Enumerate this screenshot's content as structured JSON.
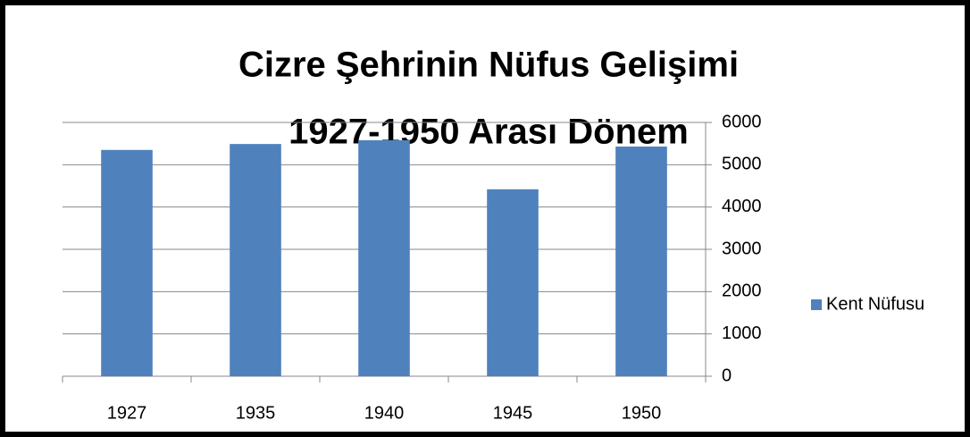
{
  "chart_data": {
    "type": "bar",
    "title": "Cizre Şehrinin Nüfus Gelişimi",
    "subtitle": "1927-1950 Arası Dönem",
    "categories": [
      "1927",
      "1935",
      "1940",
      "1945",
      "1950"
    ],
    "series": [
      {
        "name": "Kent Nüfusu",
        "color": "#4f81bd",
        "values": [
          5350,
          5490,
          5580,
          4420,
          5430
        ]
      }
    ],
    "ylim": [
      0,
      6000
    ],
    "yticks": [
      0,
      1000,
      2000,
      3000,
      4000,
      5000,
      6000
    ],
    "grid": true,
    "legend": "right",
    "y_axis_side": "right"
  }
}
